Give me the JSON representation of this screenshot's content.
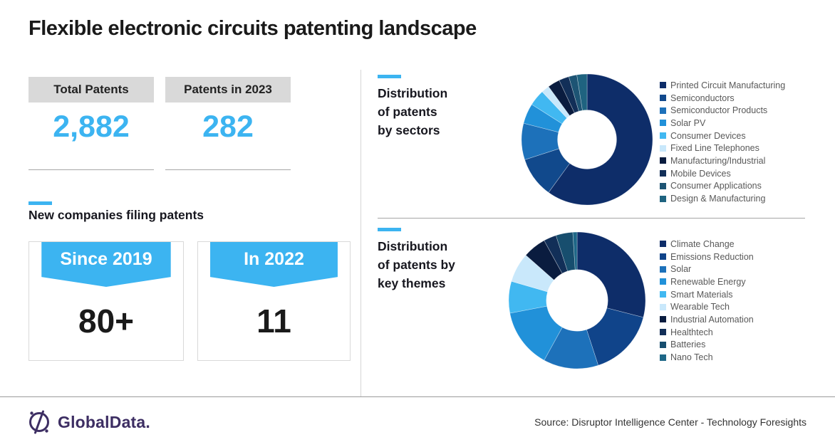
{
  "page_title": "Flexible electronic circuits patenting landscape",
  "accent_color": "#3cb4f1",
  "stats": [
    {
      "label": "Total Patents",
      "value": "2,882"
    },
    {
      "label": "Patents in 2023",
      "value": "282"
    }
  ],
  "new_companies": {
    "heading": "New companies filing patents",
    "cards": [
      {
        "ribbon_label": "Since 2019",
        "value": "80+"
      },
      {
        "ribbon_label": "In 2022",
        "value": "11"
      }
    ]
  },
  "chart_data": [
    {
      "type": "pie",
      "subtype": "donut",
      "title": "Distribution of patents by sectors",
      "title_lines": [
        "Distribution",
        "of patents",
        "by sectors"
      ],
      "legend_position": "right",
      "values_are": "estimated percent share",
      "labels": [
        "Printed Circuit Manufacturing",
        "Semiconductors",
        "Semiconductor Products",
        "Solar PV",
        "Consumer Devices",
        "Fixed Line Telephones",
        "Manufacturing/Industrial",
        "Mobile Devices",
        "Consumer Applications",
        "Design & Manufacturing"
      ],
      "values": [
        60,
        10,
        9,
        5,
        4,
        2,
        3,
        2.5,
        2,
        2.5
      ],
      "colors": [
        "#0e2d69",
        "#11498c",
        "#1d71ba",
        "#2191d9",
        "#41b8f1",
        "#c9e8fb",
        "#0a1c3f",
        "#122f58",
        "#1d5474",
        "#1f6380"
      ]
    },
    {
      "type": "pie",
      "subtype": "donut",
      "title": "Distribution of patents by key themes",
      "title_lines": [
        "Distribution",
        "of patents by",
        "key themes"
      ],
      "legend_position": "right",
      "values_are": "estimated percent share",
      "labels": [
        "Climate Change",
        "Emissions Reduction",
        "Solar",
        "Renewable Energy",
        "Smart Materials",
        "Wearable Tech",
        "Industrial Automation",
        "Healthtech",
        "Batteries",
        "Nano Tech"
      ],
      "values": [
        29,
        16,
        13,
        14,
        7.5,
        7,
        5.5,
        3,
        4,
        1
      ],
      "colors": [
        "#0e2d69",
        "#10448a",
        "#1d71ba",
        "#2191d9",
        "#41b8f1",
        "#c9e8fb",
        "#0a1c3f",
        "#122f58",
        "#174e6e",
        "#1e6787"
      ]
    }
  ],
  "footer": {
    "logo_icon": "globaldata-circle-slash-icon",
    "logo_text": "GlobalData.",
    "source": "Source: Disruptor Intelligence Center - Technology Foresights"
  }
}
